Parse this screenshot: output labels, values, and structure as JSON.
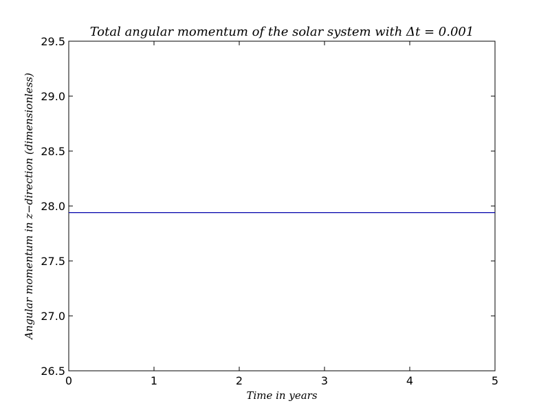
{
  "chart_data": {
    "type": "line",
    "title": "Total angular momentum of the solar system with Δt = 0.001",
    "xlabel": "Time in years",
    "ylabel": "Angular momentum in z−direction (dimensionless)",
    "xlim": [
      0,
      5
    ],
    "ylim": [
      26.5,
      29.5
    ],
    "xticks": [
      0,
      1,
      2,
      3,
      4,
      5
    ],
    "xtick_labels": [
      "0",
      "1",
      "2",
      "3",
      "4",
      "5"
    ],
    "yticks": [
      26.5,
      27.0,
      27.5,
      28.0,
      28.5,
      29.0,
      29.5
    ],
    "ytick_labels": [
      "26.5",
      "27.0",
      "27.5",
      "28.0",
      "28.5",
      "29.0",
      "29.5"
    ],
    "grid": false,
    "legend": "none",
    "series": [
      {
        "color": "#0000aa",
        "x": [
          0,
          1,
          2,
          3,
          4,
          5
        ],
        "y": [
          27.94,
          27.94,
          27.94,
          27.94,
          27.94,
          27.94
        ]
      }
    ]
  }
}
